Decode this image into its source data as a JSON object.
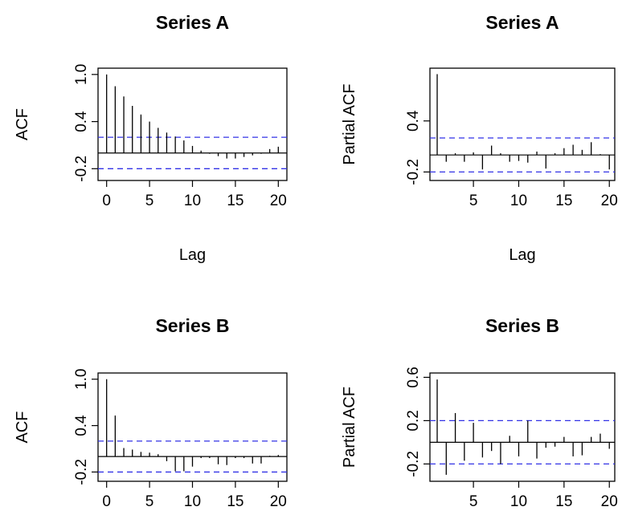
{
  "chart_data": [
    {
      "type": "bar",
      "title": "Series  A",
      "xlabel": "Lag",
      "ylabel": "ACF",
      "x": [
        0,
        1,
        2,
        3,
        4,
        5,
        6,
        7,
        8,
        9,
        10,
        11,
        12,
        13,
        14,
        15,
        16,
        17,
        18,
        19,
        20
      ],
      "values": [
        1.0,
        0.85,
        0.72,
        0.6,
        0.49,
        0.4,
        0.32,
        0.26,
        0.21,
        0.16,
        0.09,
        0.03,
        -0.01,
        -0.04,
        -0.07,
        -0.07,
        -0.05,
        -0.03,
        -0.01,
        0.05,
        0.08
      ],
      "xlim": [
        -1,
        21
      ],
      "ylim": [
        -0.35,
        1.08
      ],
      "xticks": [
        0,
        5,
        10,
        15,
        20
      ],
      "xtick_labels": [
        "0",
        "5",
        "10",
        "15",
        "20"
      ],
      "yticks": [
        -0.2,
        0.4,
        1.0
      ],
      "ytick_labels": [
        "-0.2",
        "0.4",
        "1.0"
      ],
      "ci": 0.2,
      "grid": false
    },
    {
      "type": "bar",
      "title": "Series  A",
      "xlabel": "Lag",
      "ylabel": "Partial ACF",
      "x": [
        1,
        2,
        3,
        4,
        5,
        6,
        7,
        8,
        9,
        10,
        11,
        12,
        13,
        14,
        15,
        16,
        17,
        18,
        19,
        20
      ],
      "values": [
        0.95,
        -0.08,
        0.02,
        -0.08,
        0.03,
        -0.17,
        0.11,
        0.02,
        -0.08,
        -0.07,
        -0.09,
        0.04,
        -0.16,
        0.02,
        0.08,
        0.12,
        0.06,
        0.15,
        0.01,
        -0.17
      ],
      "xlim": [
        0.2,
        20.6
      ],
      "ylim": [
        -0.3,
        1.02
      ],
      "xticks": [
        5,
        10,
        15,
        20
      ],
      "xtick_labels": [
        "5",
        "10",
        "15",
        "20"
      ],
      "yticks": [
        -0.2,
        0.4
      ],
      "ytick_labels": [
        "-0.2",
        "0.4"
      ],
      "ci": 0.2,
      "grid": false
    },
    {
      "type": "bar",
      "title": "Series  B",
      "xlabel": "",
      "ylabel": "ACF",
      "x": [
        0,
        1,
        2,
        3,
        4,
        5,
        6,
        7,
        8,
        9,
        10,
        11,
        12,
        13,
        14,
        15,
        16,
        17,
        18,
        19,
        20
      ],
      "values": [
        1.0,
        0.53,
        0.11,
        0.09,
        0.06,
        0.05,
        0.03,
        -0.06,
        -0.19,
        -0.19,
        -0.13,
        -0.02,
        -0.02,
        -0.1,
        -0.11,
        -0.02,
        -0.02,
        -0.09,
        -0.09,
        0.01,
        0.02
      ],
      "xlim": [
        -1,
        21
      ],
      "ylim": [
        -0.32,
        1.08
      ],
      "xticks": [
        0,
        5,
        10,
        15,
        20
      ],
      "xtick_labels": [
        "0",
        "5",
        "10",
        "15",
        "20"
      ],
      "yticks": [
        -0.2,
        0.4,
        1.0
      ],
      "ytick_labels": [
        "-0.2",
        "0.4",
        "1.0"
      ],
      "ci": 0.2,
      "grid": false
    },
    {
      "type": "bar",
      "title": "Series  B",
      "xlabel": "",
      "ylabel": "Partial ACF",
      "x": [
        1,
        2,
        3,
        4,
        5,
        6,
        7,
        8,
        9,
        10,
        11,
        12,
        13,
        14,
        15,
        16,
        17,
        18,
        19,
        20
      ],
      "values": [
        0.58,
        -0.3,
        0.27,
        -0.17,
        0.18,
        -0.14,
        -0.08,
        -0.2,
        0.06,
        -0.13,
        0.2,
        -0.15,
        -0.05,
        -0.04,
        0.05,
        -0.13,
        -0.12,
        0.05,
        0.08,
        -0.06
      ],
      "xlim": [
        0.2,
        20.6
      ],
      "ylim": [
        -0.36,
        0.64
      ],
      "xticks": [
        5,
        10,
        15,
        20
      ],
      "xtick_labels": [
        "5",
        "10",
        "15",
        "20"
      ],
      "yticks": [
        -0.2,
        0.2,
        0.6
      ],
      "ytick_labels": [
        "-0.2",
        "0.2",
        "0.6"
      ],
      "ci": 0.2,
      "grid": false
    }
  ],
  "colors": {
    "bars": "#000000",
    "ci_line": "#3232e6",
    "axes": "#000000",
    "background": "#ffffff"
  }
}
